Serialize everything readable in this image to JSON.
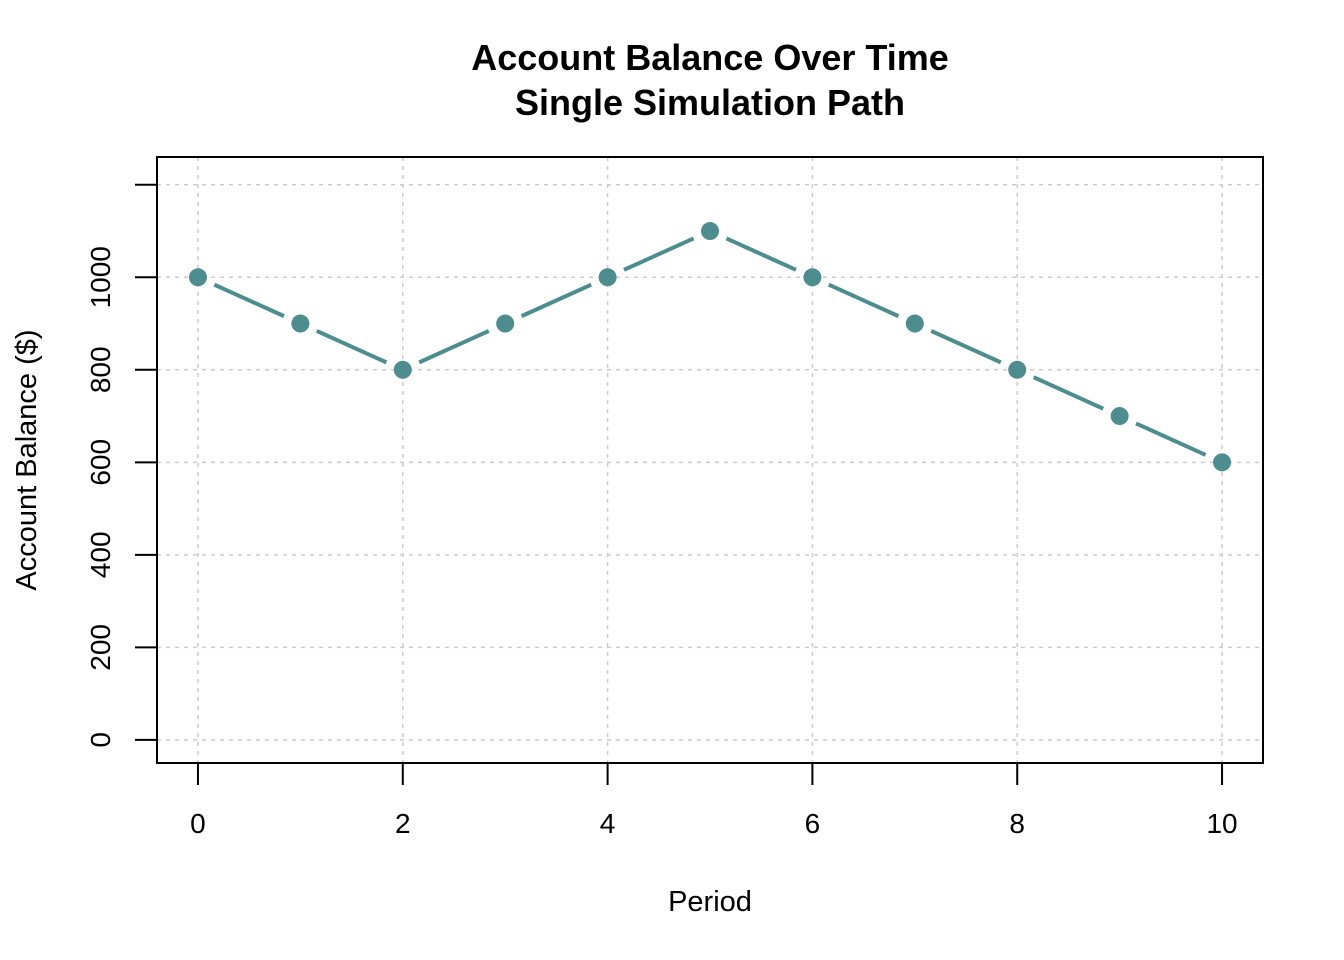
{
  "chart_data": {
    "type": "line",
    "title": "Account Balance Over Time",
    "subtitle": "Single Simulation Path",
    "xlabel": "Period",
    "ylabel": "Account Balance ($)",
    "x": [
      0,
      1,
      2,
      3,
      4,
      5,
      6,
      7,
      8,
      9,
      10
    ],
    "series": [
      {
        "values": [
          1000,
          900,
          800,
          900,
          1000,
          1100,
          1000,
          900,
          800,
          700,
          600
        ],
        "color": "#4E8D8F"
      }
    ],
    "xlim": [
      -0.4,
      10.4
    ],
    "ylim": [
      -50,
      1260
    ],
    "xticks": [
      0,
      2,
      4,
      6,
      8,
      10
    ],
    "xtick_labels": [
      "0",
      "2",
      "4",
      "6",
      "8",
      "10"
    ],
    "yticks": [
      0,
      200,
      400,
      600,
      800,
      1000,
      1200
    ],
    "ytick_labels": [
      "0",
      "200",
      "400",
      "600",
      "800",
      "1000",
      ""
    ],
    "grid": true,
    "grid_color": "#cccccc",
    "markers": true
  }
}
